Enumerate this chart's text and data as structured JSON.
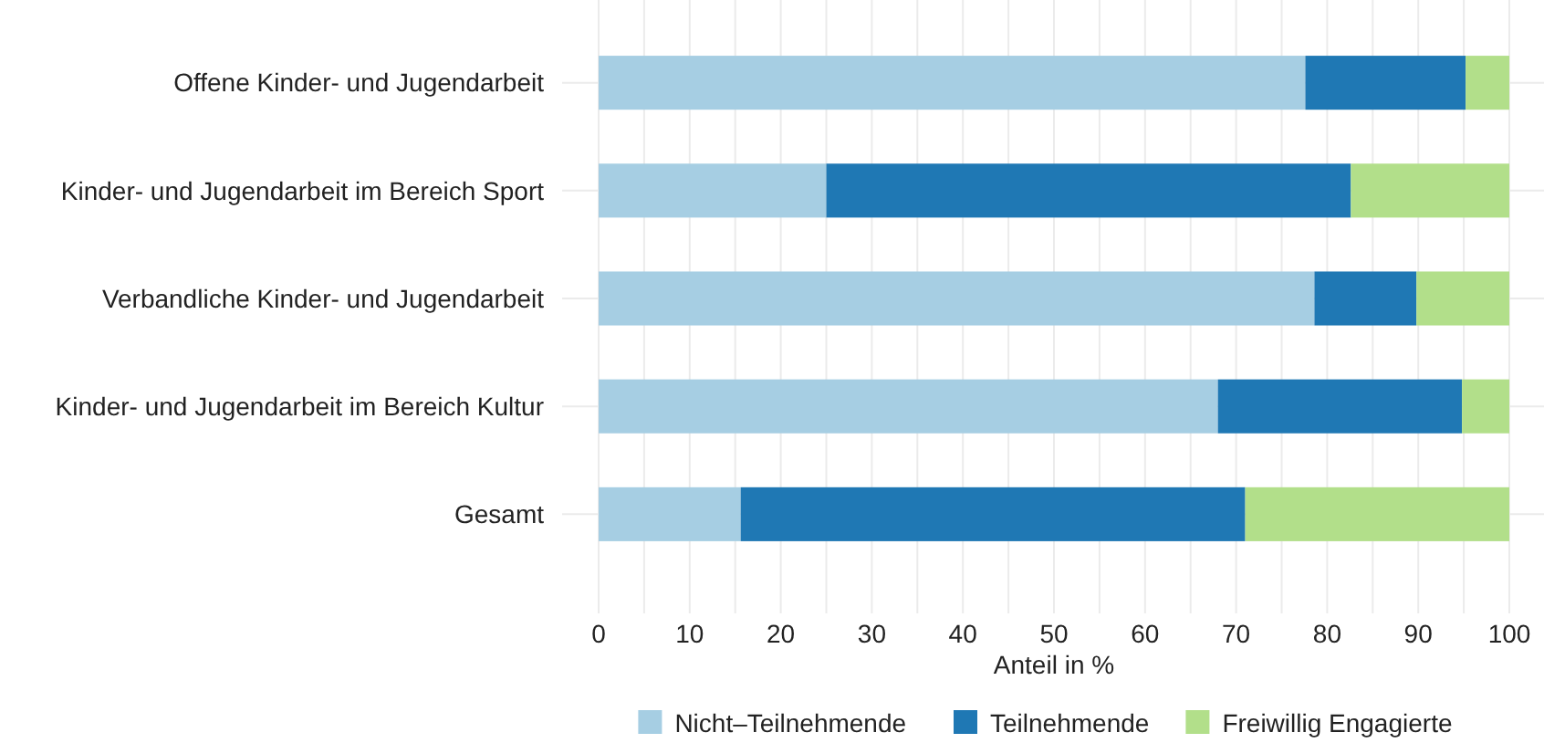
{
  "chart_data": {
    "type": "bar",
    "orientation": "horizontal",
    "stacked": true,
    "categories": [
      "Offene Kinder- und Jugendarbeit",
      "Kinder- und Jugendarbeit im Bereich Sport",
      "Verbandliche Kinder- und Jugendarbeit",
      "Kinder- und Jugendarbeit im Bereich Kultur",
      "Gesamt"
    ],
    "series": [
      {
        "name": "Nicht–Teilnehmende",
        "color": "#a6cee3",
        "values": [
          77.6,
          25.0,
          78.6,
          68.0,
          15.6
        ]
      },
      {
        "name": "Teilnehmende",
        "color": "#1f78b4",
        "values": [
          17.6,
          57.6,
          11.2,
          26.8,
          55.4
        ]
      },
      {
        "name": "Freiwillig Engagierte",
        "color": "#b2df8a",
        "values": [
          4.8,
          17.4,
          10.2,
          5.2,
          29.0
        ]
      }
    ],
    "xlabel": "Anteil in %",
    "xlim": [
      0,
      100
    ],
    "xticks": [
      0,
      {
        "value": 5,
        "label": null
      },
      10,
      {
        "value": 15,
        "label": null
      },
      20,
      {
        "value": 25,
        "label": null
      },
      30,
      {
        "value": 35,
        "label": null
      },
      40,
      {
        "value": 45,
        "label": null
      },
      50,
      {
        "value": 55,
        "label": null
      },
      60,
      {
        "value": 65,
        "label": null
      },
      70,
      {
        "value": 75,
        "label": null
      },
      80,
      {
        "value": 85,
        "label": null
      },
      90,
      {
        "value": 95,
        "label": null
      },
      100
    ],
    "grid": true,
    "legend": "bottom"
  }
}
